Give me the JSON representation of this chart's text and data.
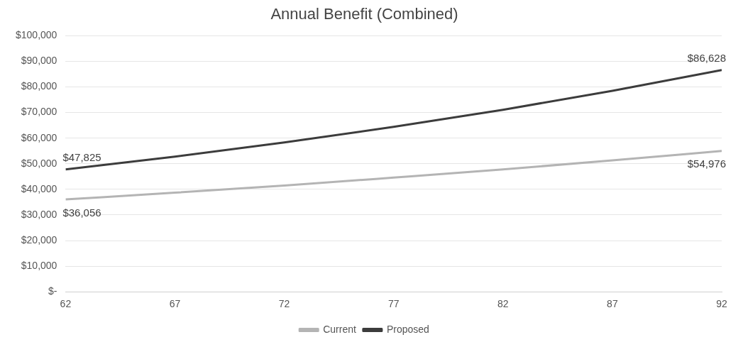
{
  "chart_data": {
    "type": "line",
    "title": "Annual Benefit (Combined)",
    "x": [
      62,
      67,
      72,
      77,
      82,
      87,
      92
    ],
    "series": [
      {
        "name": "Current",
        "color": "#b4b4b4",
        "values": [
          36056,
          38700,
          41500,
          44600,
          47800,
          51300,
          54976
        ],
        "value_labels": [
          "$36,056",
          null,
          null,
          null,
          null,
          null,
          "$54,976"
        ]
      },
      {
        "name": "Proposed",
        "color": "#3c3c3c",
        "values": [
          47825,
          52800,
          58300,
          64400,
          71100,
          78500,
          86628
        ],
        "value_labels": [
          "$47,825",
          null,
          null,
          null,
          null,
          null,
          "$86,628"
        ]
      }
    ],
    "xlim": [
      62,
      92
    ],
    "xticks": [
      62,
      67,
      72,
      77,
      82,
      87,
      92
    ],
    "ylim": [
      0,
      100000
    ],
    "yticks": [
      {
        "value": 0,
        "label": "$-"
      },
      {
        "value": 10000,
        "label": "$10,000"
      },
      {
        "value": 20000,
        "label": "$20,000"
      },
      {
        "value": 30000,
        "label": "$30,000"
      },
      {
        "value": 40000,
        "label": "$40,000"
      },
      {
        "value": 50000,
        "label": "$50,000"
      },
      {
        "value": 60000,
        "label": "$60,000"
      },
      {
        "value": 70000,
        "label": "$70,000"
      },
      {
        "value": 80000,
        "label": "$80,000"
      },
      {
        "value": 90000,
        "label": "$90,000"
      },
      {
        "value": 100000,
        "label": "$100,000"
      }
    ],
    "grid": "y",
    "legend": "bottom",
    "marker": "none",
    "line_style": "solid"
  }
}
